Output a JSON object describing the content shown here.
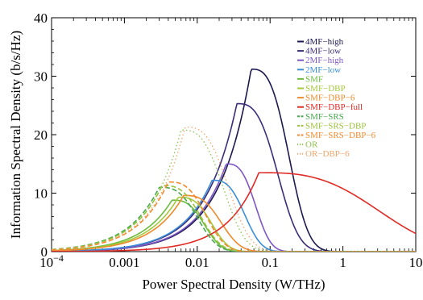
{
  "chart_data": {
    "type": "line",
    "xlabel": "Power Spectral Density (W/THz)",
    "ylabel": "Information Spectral Density (b/s/Hz)",
    "x_scale": "log",
    "xlim": [
      0.0001,
      10
    ],
    "ylim": [
      0,
      40
    ],
    "grid": false,
    "legend_position": "top-right",
    "x_ticks": [
      {
        "value": 0.0001,
        "base": "10",
        "exp": "−4"
      },
      {
        "value": 0.001,
        "label": "0.001"
      },
      {
        "value": 0.01,
        "label": "0.01"
      },
      {
        "value": 0.1,
        "label": "0.1"
      },
      {
        "value": 1,
        "label": "1"
      },
      {
        "value": 10,
        "label": "10"
      }
    ],
    "y_ticks": [
      0,
      10,
      20,
      30,
      40
    ],
    "series": [
      {
        "name": "4MF−high",
        "color": "#1c1850",
        "dash": "solid",
        "peak_x": 0.055,
        "peak_y": 31.2,
        "end_x": 0.72
      },
      {
        "name": "4MF−low",
        "color": "#3b2c7a",
        "dash": "solid",
        "peak_x": 0.035,
        "peak_y": 25.3,
        "end_x": 0.55
      },
      {
        "name": "2MF−high",
        "color": "#7e56c6",
        "dash": "solid",
        "peak_x": 0.025,
        "peak_y": 15.0,
        "end_x": 0.17
      },
      {
        "name": "2MF−low",
        "color": "#3a8ed8",
        "dash": "solid",
        "peak_x": 0.016,
        "peak_y": 12.2,
        "end_x": 0.13
      },
      {
        "name": "SMF",
        "color": "#6cbd3f",
        "dash": "solid",
        "peak_x": 0.0045,
        "peak_y": 8.8,
        "end_x": 0.035
      },
      {
        "name": "SMF−DBP",
        "color": "#a4c93c",
        "dash": "solid",
        "peak_x": 0.0055,
        "peak_y": 9.3,
        "end_x": 0.045
      },
      {
        "name": "SMF−DBP−6",
        "color": "#ef8a2c",
        "dash": "solid",
        "peak_x": 0.0065,
        "peak_y": 9.6,
        "end_x": 0.07
      },
      {
        "name": "SMF−DBP−full",
        "color": "#e02a24",
        "dash": "solid",
        "peak_x": 0.07,
        "peak_y": 13.5,
        "end_x": 10,
        "end_y": 3.1
      },
      {
        "name": "SMF−SRS",
        "color": "#48a84e",
        "dash": "dash",
        "peak_x": 0.003,
        "peak_y": 11.0,
        "end_x": 0.035
      },
      {
        "name": "SMF−SRS−DBP",
        "color": "#9ac23a",
        "dash": "dash",
        "peak_x": 0.0033,
        "peak_y": 11.3,
        "end_x": 0.04
      },
      {
        "name": "SMF−SRS−DBP−6",
        "color": "#f08a2e",
        "dash": "dash",
        "peak_x": 0.004,
        "peak_y": 11.9,
        "end_x": 0.045
      },
      {
        "name": "OR",
        "color": "#8cc04a",
        "dash": "dot",
        "peak_x": 0.006,
        "peak_y": 20.8,
        "end_x": 0.1
      },
      {
        "name": "OR−DBP−6",
        "color": "#f0a56a",
        "dash": "dot",
        "peak_x": 0.0068,
        "peak_y": 21.3,
        "end_x": 0.12
      }
    ]
  }
}
